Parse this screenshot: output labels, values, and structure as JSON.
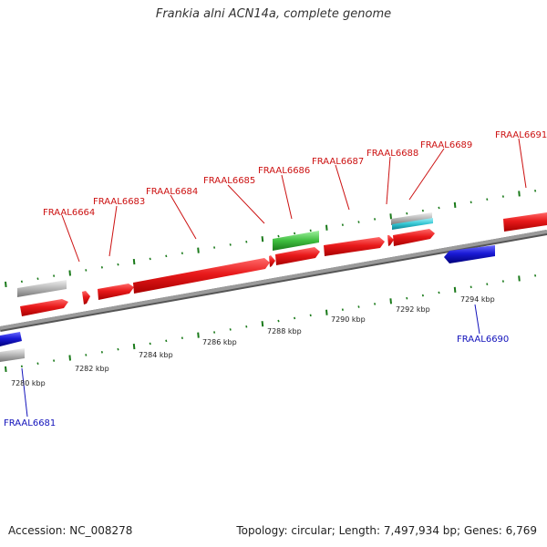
{
  "title": "Frankia alni ACN14a, complete genome",
  "footer": {
    "accession": "Accession: NC_008278",
    "summary": "Topology: circular; Length: 7,497,934 bp; Genes: 6,769"
  },
  "colors": {
    "forward_cds": "#e8191a",
    "reverse_cds": "#1a1ad6",
    "gene_feature": "#b5b5b5",
    "rna_feature": "#3fbe3f",
    "other_feature": "#35c6d3",
    "forward_label": "#cc1111",
    "reverse_label": "#1111bb",
    "tick": "#1a7a1a",
    "backbone": "#888888"
  },
  "tick_labels": [
    "7280 kbp",
    "7282 kbp",
    "7284 kbp",
    "7286 kbp",
    "7288 kbp",
    "7290 kbp",
    "7292 kbp",
    "7294 kbp"
  ],
  "gene_labels_forward": [
    "FRAAL6664",
    "FRAAL6683",
    "FRAAL6684",
    "FRAAL6685",
    "FRAAL6686",
    "FRAAL6687",
    "FRAAL6688",
    "FRAAL6689",
    "FRAAL6691"
  ],
  "gene_labels_reverse": [
    "FRAAL6681",
    "FRAAL6690"
  ]
}
